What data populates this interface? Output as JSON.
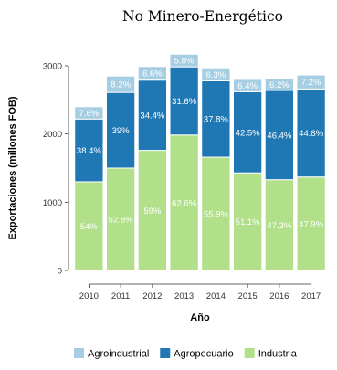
{
  "chart_data": {
    "type": "bar",
    "stacked": true,
    "title": "No Minero-Energético",
    "xlabel": "Año",
    "ylabel": "Exportaciones (millones FOB)",
    "ylim": [
      0,
      3300
    ],
    "yticks": [
      0,
      1000,
      2000,
      3000
    ],
    "grid": false,
    "legend_position": "bottom",
    "categories": [
      "2010",
      "2011",
      "2012",
      "2013",
      "2014",
      "2015",
      "2016",
      "2017"
    ],
    "series": [
      {
        "name": "Industria",
        "color": "#b2df8a",
        "values": [
          1300,
          1500,
          1760,
          1985,
          1660,
          1430,
          1330,
          1370
        ],
        "labels": [
          "54%",
          "52.8%",
          "59%",
          "62.6%",
          "55.9%",
          "51.1%",
          "47.3%",
          "47.9%"
        ]
      },
      {
        "name": "Agropecuario",
        "color": "#1f78b4",
        "values": [
          920,
          1110,
          1030,
          1000,
          1120,
          1190,
          1310,
          1290
        ],
        "labels": [
          "38.4%",
          "39%",
          "34.4%",
          "31.6%",
          "37.8%",
          "42.5%",
          "46.4%",
          "44.8%"
        ]
      },
      {
        "name": "Agroindustrial",
        "color": "#a6cee3",
        "values": [
          180,
          240,
          200,
          185,
          190,
          180,
          175,
          205
        ],
        "labels": [
          "7.6%",
          "8.2%",
          "6.6%",
          "5.8%",
          "6.3%",
          "6.4%",
          "6.2%",
          "7.2%"
        ]
      }
    ],
    "legend_order": [
      "Agroindustrial",
      "Agropecuario",
      "Industria"
    ]
  }
}
